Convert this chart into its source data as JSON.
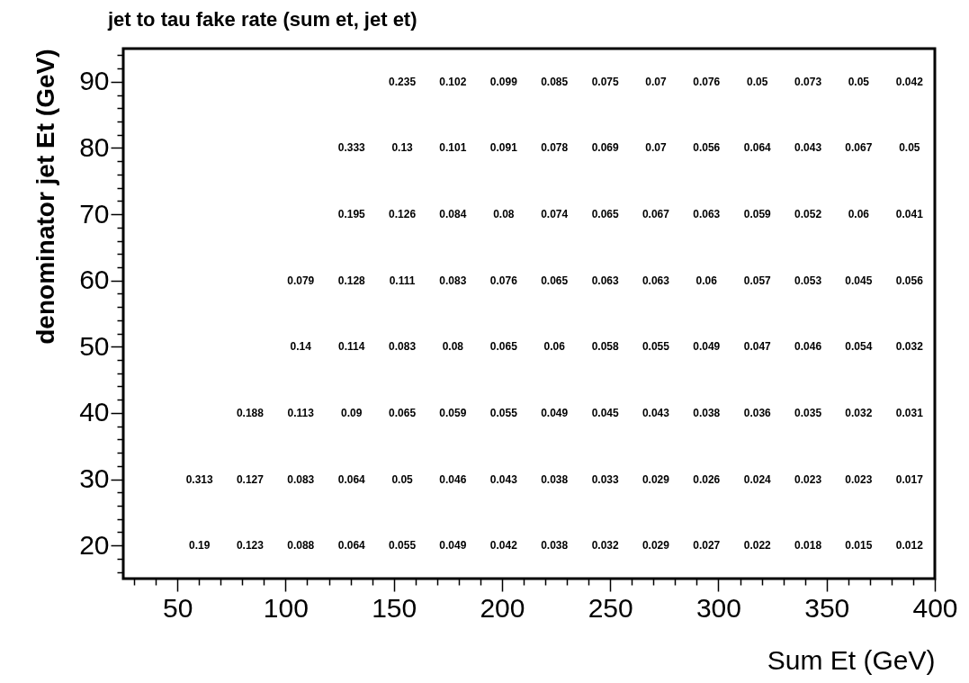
{
  "chart_data": {
    "type": "heatmap",
    "title": "jet to tau fake rate (sum et, jet et)",
    "xlabel": "Sum Et (GeV)",
    "ylabel": "denominator jet Et (GeV)",
    "x": [
      60.2,
      83.6,
      107.0,
      130.5,
      153.9,
      177.3,
      200.8,
      224.2,
      247.7,
      271.1,
      294.5,
      318.0,
      341.4,
      364.8,
      388.3
    ],
    "y": [
      90,
      80,
      70,
      60,
      50,
      40,
      30,
      20
    ],
    "cells": [
      [
        null,
        null,
        null,
        null,
        0.235,
        0.102,
        0.099,
        0.085,
        0.075,
        0.07,
        0.076,
        0.05,
        0.073,
        0.05,
        0.042
      ],
      [
        null,
        null,
        null,
        0.333,
        0.13,
        0.101,
        0.091,
        0.078,
        0.069,
        0.07,
        0.056,
        0.064,
        0.043,
        0.067,
        0.05
      ],
      [
        null,
        null,
        null,
        0.195,
        0.126,
        0.084,
        0.08,
        0.074,
        0.065,
        0.067,
        0.063,
        0.059,
        0.052,
        0.06,
        0.041
      ],
      [
        null,
        null,
        0.079,
        0.128,
        0.111,
        0.083,
        0.076,
        0.065,
        0.063,
        0.063,
        0.06,
        0.057,
        0.053,
        0.045,
        0.056
      ],
      [
        null,
        null,
        0.14,
        0.114,
        0.083,
        0.08,
        0.065,
        0.06,
        0.058,
        0.055,
        0.049,
        0.047,
        0.046,
        0.054,
        0.032
      ],
      [
        null,
        0.188,
        0.113,
        0.09,
        0.065,
        0.059,
        0.055,
        0.049,
        0.045,
        0.043,
        0.038,
        0.036,
        0.035,
        0.032,
        0.031
      ],
      [
        0.313,
        0.127,
        0.083,
        0.064,
        0.05,
        0.046,
        0.043,
        0.038,
        0.033,
        0.029,
        0.026,
        0.024,
        0.023,
        0.023,
        0.017
      ],
      [
        0.19,
        0.123,
        0.088,
        0.064,
        0.055,
        0.049,
        0.042,
        0.038,
        0.032,
        0.029,
        0.027,
        0.022,
        0.018,
        0.015,
        0.012
      ]
    ],
    "data_labels": true,
    "xlim": [
      25,
      400
    ],
    "ylim": [
      15,
      95
    ],
    "xticks": [
      {
        "value": 30,
        "label": null
      },
      {
        "value": 40,
        "label": null
      },
      50,
      {
        "value": 60,
        "label": null
      },
      {
        "value": 70,
        "label": null
      },
      {
        "value": 80,
        "label": null
      },
      {
        "value": 90,
        "label": null
      },
      100,
      {
        "value": 110,
        "label": null
      },
      {
        "value": 120,
        "label": null
      },
      {
        "value": 130,
        "label": null
      },
      {
        "value": 140,
        "label": null
      },
      150,
      {
        "value": 160,
        "label": null
      },
      {
        "value": 170,
        "label": null
      },
      {
        "value": 180,
        "label": null
      },
      {
        "value": 190,
        "label": null
      },
      200,
      {
        "value": 210,
        "label": null
      },
      {
        "value": 220,
        "label": null
      },
      {
        "value": 230,
        "label": null
      },
      {
        "value": 240,
        "label": null
      },
      250,
      {
        "value": 260,
        "label": null
      },
      {
        "value": 270,
        "label": null
      },
      {
        "value": 280,
        "label": null
      },
      {
        "value": 290,
        "label": null
      },
      300,
      {
        "value": 310,
        "label": null
      },
      {
        "value": 320,
        "label": null
      },
      {
        "value": 330,
        "label": null
      },
      {
        "value": 340,
        "label": null
      },
      350,
      {
        "value": 360,
        "label": null
      },
      {
        "value": 370,
        "label": null
      },
      {
        "value": 380,
        "label": null
      },
      {
        "value": 390,
        "label": null
      },
      400
    ],
    "yticks": [
      {
        "value": 16,
        "label": null
      },
      {
        "value": 18,
        "label": null
      },
      20,
      {
        "value": 22,
        "label": null
      },
      {
        "value": 24,
        "label": null
      },
      {
        "value": 26,
        "label": null
      },
      {
        "value": 28,
        "label": null
      },
      30,
      {
        "value": 32,
        "label": null
      },
      {
        "value": 34,
        "label": null
      },
      {
        "value": 36,
        "label": null
      },
      {
        "value": 38,
        "label": null
      },
      40,
      {
        "value": 42,
        "label": null
      },
      {
        "value": 44,
        "label": null
      },
      {
        "value": 46,
        "label": null
      },
      {
        "value": 48,
        "label": null
      },
      50,
      {
        "value": 52,
        "label": null
      },
      {
        "value": 54,
        "label": null
      },
      {
        "value": 56,
        "label": null
      },
      {
        "value": 58,
        "label": null
      },
      60,
      {
        "value": 62,
        "label": null
      },
      {
        "value": 64,
        "label": null
      },
      {
        "value": 66,
        "label": null
      },
      {
        "value": 68,
        "label": null
      },
      70,
      {
        "value": 72,
        "label": null
      },
      {
        "value": 74,
        "label": null
      },
      {
        "value": 76,
        "label": null
      },
      {
        "value": 78,
        "label": null
      },
      80,
      {
        "value": 82,
        "label": null
      },
      {
        "value": 84,
        "label": null
      },
      {
        "value": 86,
        "label": null
      },
      {
        "value": 88,
        "label": null
      },
      90,
      {
        "value": 92,
        "label": null
      },
      {
        "value": 94,
        "label": null
      }
    ]
  }
}
